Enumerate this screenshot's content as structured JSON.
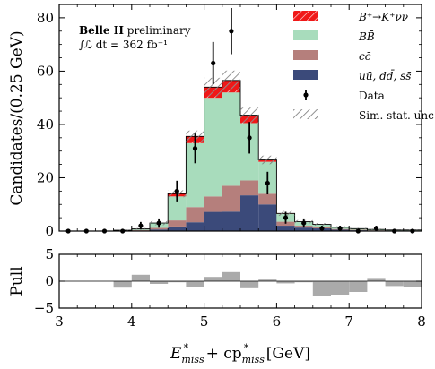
{
  "chart_data": [
    {
      "type": "stacked-histogram",
      "annotation": {
        "experiment": "Belle II",
        "status": "preliminary",
        "lumi": "∫ℒ dt = 362 fb⁻¹"
      },
      "ylabel": "Candidates/(0.25 GeV)",
      "xlim": [
        3,
        8
      ],
      "ylim": [
        0,
        85
      ],
      "yticks": [
        "0",
        "20",
        "40",
        "60",
        "80"
      ],
      "bin_edges": [
        3.0,
        3.25,
        3.5,
        3.75,
        4.0,
        4.25,
        4.5,
        4.75,
        5.0,
        5.25,
        5.5,
        5.75,
        6.0,
        6.25,
        6.5,
        6.75,
        7.0,
        7.25,
        7.5,
        7.75,
        8.0
      ],
      "legend_position": "top-right",
      "series": [
        {
          "name": "uū, dd̄, ss̄",
          "color": "#3b4a7a",
          "values": [
            0.0,
            0.0,
            0.0,
            0.1,
            0.2,
            0.6,
            1.7,
            3.3,
            7.2,
            7.3,
            13.4,
            10.0,
            2.0,
            1.3,
            1.0,
            0.5,
            0.3,
            0.2,
            0.1,
            0.1
          ]
        },
        {
          "name": "cc̄",
          "color": "#b57f7c",
          "values": [
            0.0,
            0.0,
            0.0,
            0.1,
            0.2,
            0.6,
            2.3,
            5.7,
            5.8,
            9.7,
            5.6,
            4.0,
            1.5,
            0.7,
            0.5,
            0.3,
            0.2,
            0.1,
            0.1,
            0.1
          ]
        },
        {
          "name": "BB̄",
          "color": "#a8dcbc",
          "values": [
            0.0,
            0.0,
            0.0,
            0.1,
            0.4,
            1.8,
            9.0,
            24.0,
            37.0,
            35.0,
            21.5,
            12.0,
            3.0,
            1.5,
            1.0,
            0.6,
            0.4,
            0.3,
            0.2,
            0.2
          ]
        },
        {
          "name": "B⁺→K⁺νν̄",
          "color": "#f01818",
          "values": [
            0.0,
            0.0,
            0.0,
            0.0,
            0.0,
            0.0,
            1.0,
            2.5,
            4.0,
            4.5,
            3.0,
            0.7,
            0.1,
            0.0,
            0.0,
            0.0,
            0.0,
            0.0,
            0.0,
            0.0
          ]
        }
      ],
      "data_series": {
        "name": "Data",
        "x": [
          3.125,
          3.375,
          3.625,
          3.875,
          4.125,
          4.375,
          4.625,
          4.875,
          5.125,
          5.375,
          5.625,
          5.875,
          6.125,
          6.375,
          6.625,
          6.875,
          7.125,
          7.375,
          7.625,
          7.875
        ],
        "y": [
          0,
          0,
          0,
          0,
          2,
          3,
          15,
          31,
          63,
          75,
          35,
          18,
          5,
          3,
          1,
          1,
          0,
          1,
          0,
          0
        ]
      },
      "uncertainty_label": "Sim. stat. unc.",
      "sim_unc": [
        0.1,
        0.1,
        0.1,
        0.2,
        0.3,
        0.8,
        1.3,
        2.2,
        3.5,
        3.7,
        2.8,
        1.6,
        0.9,
        0.6,
        0.5,
        0.4,
        0.3,
        0.3,
        0.2,
        0.2
      ]
    },
    {
      "type": "bar",
      "ylabel": "Pull",
      "xlabel": "E*miss + cp*miss [GeV]",
      "xlabel_parts": [
        "E",
        "miss",
        "*",
        " + cp",
        "miss",
        "*",
        " [GeV]"
      ],
      "xlim": [
        3,
        8
      ],
      "ylim": [
        -5,
        5
      ],
      "xticks": [
        "3",
        "4",
        "5",
        "6",
        "7",
        "8"
      ],
      "yticks": [
        "−5",
        "0",
        "5"
      ],
      "color": "#aaaaaa",
      "values": [
        0.0,
        0.0,
        0.0,
        -1.2,
        1.2,
        -0.5,
        -0.2,
        -1.0,
        0.8,
        1.7,
        -1.3,
        0.3,
        -0.4,
        -0.2,
        -2.8,
        -2.5,
        -2.0,
        0.6,
        -0.9,
        -1.0
      ]
    }
  ]
}
